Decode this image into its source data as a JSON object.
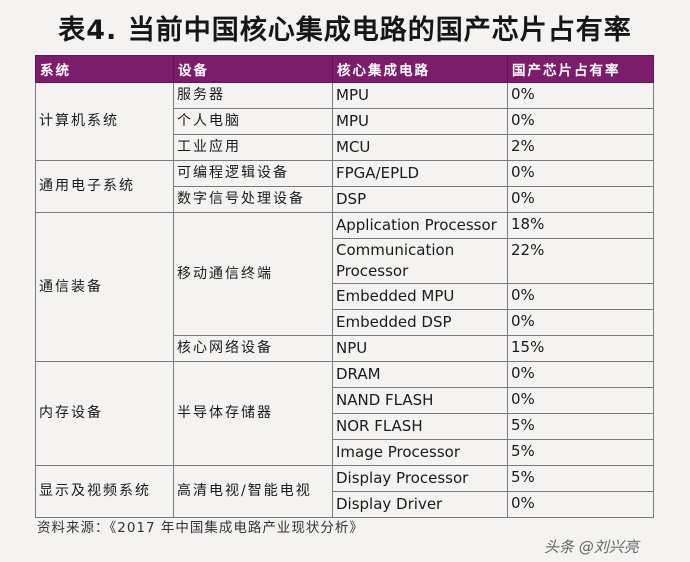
{
  "title": "表4. 当前中国核心集成电路的国产芯片占有率",
  "table": {
    "headers": [
      "系统",
      "设备",
      "核心集成电路",
      "国产芯片占有率"
    ],
    "groups": {
      "computer": "计算机系统",
      "general": "通用电子系统",
      "comm": "通信装备",
      "memory": "内存设备",
      "display": "显示及视频系统"
    },
    "devices": {
      "server": "服务器",
      "pc": "个人电脑",
      "industrial": "工业应用",
      "programmable": "可编程逻辑设备",
      "dsp": "数字信号处理设备",
      "mobile": "移动通信终端",
      "core_network": "核心网络设备",
      "semiconductor_storage": "半导体存储器",
      "tv": "高清电视/智能电视"
    },
    "rows": [
      {
        "chip": "MPU",
        "share": "0%"
      },
      {
        "chip": "MPU",
        "share": "0%"
      },
      {
        "chip": "MCU",
        "share": "2%"
      },
      {
        "chip": "FPGA/EPLD",
        "share": "0%"
      },
      {
        "chip": "DSP",
        "share": "0%"
      },
      {
        "chip": "Application Processor",
        "share": "18%"
      },
      {
        "chip": "Communication Processor",
        "share": "22%"
      },
      {
        "chip": "Embedded MPU",
        "share": "0%"
      },
      {
        "chip": "Embedded DSP",
        "share": "0%"
      },
      {
        "chip": "NPU",
        "share": "15%"
      },
      {
        "chip": "DRAM",
        "share": "0%"
      },
      {
        "chip": "NAND FLASH",
        "share": "0%"
      },
      {
        "chip": "NOR FLASH",
        "share": "5%"
      },
      {
        "chip": "Image Processor",
        "share": "5%"
      },
      {
        "chip": "Display Processor",
        "share": "5%"
      },
      {
        "chip": "Display Driver",
        "share": "0%"
      }
    ]
  },
  "source": "资料来源：《2017 年中国集成电路产业现状分析》",
  "watermark": "头条 @刘兴亮"
}
